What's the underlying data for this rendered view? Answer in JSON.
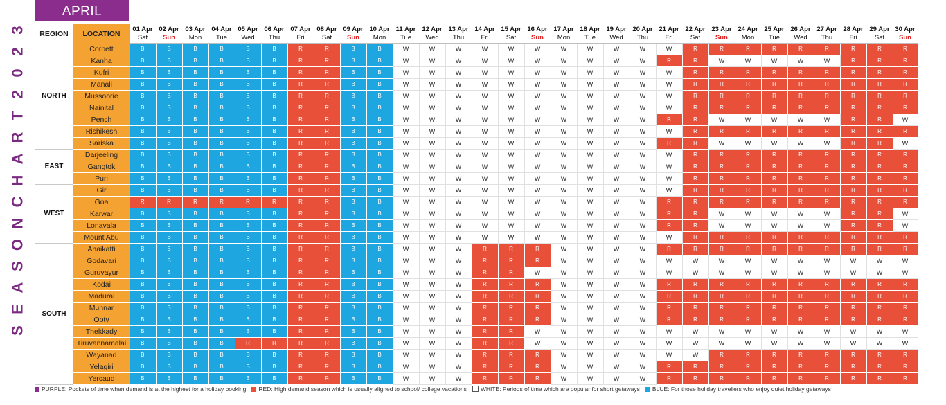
{
  "title_letters": [
    "3",
    "2",
    "0",
    "2",
    "T",
    "R",
    "A",
    "H",
    "C",
    "N",
    "O",
    "S",
    "A",
    "E",
    "S"
  ],
  "month": "APRIL",
  "headers": {
    "region": "REGION",
    "location": "LOCATION"
  },
  "days": [
    {
      "date": "01 Apr",
      "weekday": "Sat"
    },
    {
      "date": "02 Apr",
      "weekday": "Sun"
    },
    {
      "date": "03 Apr",
      "weekday": "Mon"
    },
    {
      "date": "04 Apr",
      "weekday": "Tue"
    },
    {
      "date": "05 Apr",
      "weekday": "Wed"
    },
    {
      "date": "06 Apr",
      "weekday": "Thu"
    },
    {
      "date": "07 Apr",
      "weekday": "Fri"
    },
    {
      "date": "08 Apr",
      "weekday": "Sat"
    },
    {
      "date": "09 Apr",
      "weekday": "Sun"
    },
    {
      "date": "10 Apr",
      "weekday": "Mon"
    },
    {
      "date": "11 Apr",
      "weekday": "Tue"
    },
    {
      "date": "12 Apr",
      "weekday": "Wed"
    },
    {
      "date": "13 Apr",
      "weekday": "Thu"
    },
    {
      "date": "14 Apr",
      "weekday": "Fri"
    },
    {
      "date": "15 Apr",
      "weekday": "Sat"
    },
    {
      "date": "16 Apr",
      "weekday": "Sun"
    },
    {
      "date": "17 Apr",
      "weekday": "Mon"
    },
    {
      "date": "18 Apr",
      "weekday": "Tue"
    },
    {
      "date": "19 Apr",
      "weekday": "Wed"
    },
    {
      "date": "20 Apr",
      "weekday": "Thu"
    },
    {
      "date": "21 Apr",
      "weekday": "Fri"
    },
    {
      "date": "22 Apr",
      "weekday": "Sat"
    },
    {
      "date": "23 Apr",
      "weekday": "Sun"
    },
    {
      "date": "24 Apr",
      "weekday": "Mon"
    },
    {
      "date": "25 Apr",
      "weekday": "Tue"
    },
    {
      "date": "26 Apr",
      "weekday": "Wed"
    },
    {
      "date": "27 Apr",
      "weekday": "Thu"
    },
    {
      "date": "28 Apr",
      "weekday": "Fri"
    },
    {
      "date": "29 Apr",
      "weekday": "Sat"
    },
    {
      "date": "30 Apr",
      "weekday": "Sun"
    }
  ],
  "regions": [
    {
      "name": "NORTH",
      "locations": [
        {
          "name": "Corbett",
          "codes": "BBBBBBRRBBWWWWWWWWWWWRRRRRRRRR"
        },
        {
          "name": "Kanha",
          "codes": "BBBBBBRRBBWWWWWWWWWWRRWWWWWRRR"
        },
        {
          "name": "Kufri",
          "codes": "BBBBBBRRBBWWWWWWWWWWWRRRRRRRRR"
        },
        {
          "name": "Manali",
          "codes": "BBBBBBRRBBWWWWWWWWWWWRRRRRRRRR"
        },
        {
          "name": "Mussoorie",
          "codes": "BBBBBBRRBBWWWWWWWWWWWRRRRRRRRR"
        },
        {
          "name": "Nainital",
          "codes": "BBBBBBRRBBWWWWWWWWWWWRRRRRRRRR"
        },
        {
          "name": "Pench",
          "codes": "BBBBBBRRBBWWWWWWWWWWRRWWWWWRRW"
        },
        {
          "name": "Rishikesh",
          "codes": "BBBBBBRRBBWWWWWWWWWWWRRRRRRRRR"
        },
        {
          "name": "Sariska",
          "codes": "BBBBBBRRBBWWWWWWWWWWRRWWWWWRRW"
        }
      ]
    },
    {
      "name": "EAST",
      "locations": [
        {
          "name": "Darjeeling",
          "codes": "BBBBBBRRBBWWWWWWWWWWWRRRRRRRRR"
        },
        {
          "name": "Gangtok",
          "codes": "BBBBBBRRBBWWWWWWWWWWWRRRRRRRRR"
        },
        {
          "name": "Puri",
          "codes": "BBBBBBRRBBWWWWWWWWWWWRRRRRRRRR"
        }
      ]
    },
    {
      "name": "WEST",
      "locations": [
        {
          "name": "Gir",
          "codes": "BBBBBBRRBBWWWWWWWWWWWRRRRRRRRR"
        },
        {
          "name": "Goa",
          "codes": "RRRRRRRRBBWWWWWWWWWWRRRRRRRRRR"
        },
        {
          "name": "Karwar",
          "codes": "BBBBBBRRBBWWWWWWWWWWRRWWWWWRRW"
        },
        {
          "name": "Lonavala",
          "codes": "BBBBBBRRBBWWWWWWWWWWRRWWWWWRRW"
        },
        {
          "name": "Mount Abu",
          "codes": "BBBBBBRRBBWWWWWWWWWWWRRRRRRRRR"
        }
      ]
    },
    {
      "name": "SOUTH",
      "locations": [
        {
          "name": "Anaikatti",
          "codes": "BBBBBBRRBBWWWRRRWWWWRRRRRRRRRR"
        },
        {
          "name": "Godavari",
          "codes": "BBBBBBRRBBWWWRRRWWWWWWWWWWWWWW"
        },
        {
          "name": "Guruvayur",
          "codes": "BBBBBBRRBBWWWRRWWWWWWWWWWWWWWW"
        },
        {
          "name": "Kodai",
          "codes": "BBBBBBRRBBWWWRRRWWWWRRRRRRRRRR"
        },
        {
          "name": "Madurai",
          "codes": "BBBBBBRRBBWWWRRRWWWWRRRRRRRRRR"
        },
        {
          "name": "Munnar",
          "codes": "BBBBBBRRBBWWWRRRWWWWRRRRRRRRRR"
        },
        {
          "name": "Ooty",
          "codes": "BBBBBBRRBBWWWRRRWWWWRRRRRRRRRR"
        },
        {
          "name": "Thekkady",
          "codes": "BBBBBBRRBBWWWRRWWWWWWWWWWWWWWW"
        },
        {
          "name": "Tiruvannamalai",
          "codes": "BBBBRRRRBBWWWRRWWWWWWWWWWWWWWW"
        },
        {
          "name": "Wayanad",
          "codes": "BBBBBBRRBBWWWRRRWWWWWWRRRRRRRR"
        },
        {
          "name": "Yelagiri",
          "codes": "BBBBBBRRBBWWWRRRWWWWRRRRRRRRRR"
        },
        {
          "name": "Yercaud",
          "codes": "BBBBBBRRBBWWWRRRWWWWRRRRRRRRRR"
        }
      ]
    }
  ],
  "legend": [
    {
      "color": "#8a2d8c",
      "text": "PURPLE: Pockets of time when demand is at the highest for a holiday booking"
    },
    {
      "color": "#e8503a",
      "text": "RED: High demand season which is usually aligned to school/ college vacations"
    },
    {
      "color": "#ffffff",
      "text": "WHITE: Periods of time which are popular for short getaways"
    },
    {
      "color": "#1ea6e0",
      "text": "BLUE: For those holiday travellers who enjoy quiet holiday getaways"
    }
  ]
}
